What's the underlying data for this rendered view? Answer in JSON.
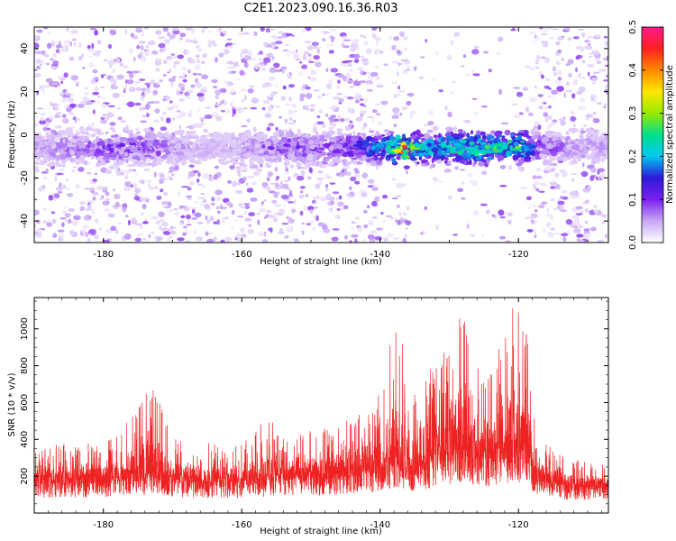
{
  "title": "C2E1.2023.090.16.36.R03",
  "colors": {
    "snr_line": "#ee2222",
    "colormap": [
      "#ffffff",
      "#c9a8f5",
      "#7a1ff0",
      "#2d1ad8",
      "#00c8f0",
      "#00e08a",
      "#98e800",
      "#ffe800",
      "#ff8800",
      "#ff2020",
      "#ff1a8c"
    ]
  },
  "chart_data": [
    {
      "type": "heatmap",
      "xlabel": "Height of straight line (km)",
      "ylabel": "Frequency (Hz)",
      "xlim": [
        -190,
        -107
      ],
      "ylim": [
        -50,
        50
      ],
      "xticks": [
        "-180",
        "-160",
        "-140",
        "-120"
      ],
      "yticks": [
        "-40",
        "-20",
        "0",
        "20",
        "40"
      ],
      "colorbar": {
        "label": "Normalized spectral amplitude",
        "range": [
          0.0,
          0.5
        ],
        "ticks": [
          "0.0",
          "0.1",
          "0.2",
          "0.3",
          "0.4",
          "0.5"
        ]
      },
      "band_center_hz": -6,
      "band_halfwidth_hz": 9,
      "band_peak_amplitude": [
        {
          "x": -190,
          "v": 0.06
        },
        {
          "x": -183,
          "v": 0.09
        },
        {
          "x": -178,
          "v": 0.12
        },
        {
          "x": -173,
          "v": 0.1
        },
        {
          "x": -167,
          "v": 0.05
        },
        {
          "x": -162,
          "v": 0.05
        },
        {
          "x": -158,
          "v": 0.08
        },
        {
          "x": -153,
          "v": 0.11
        },
        {
          "x": -147,
          "v": 0.09
        },
        {
          "x": -142,
          "v": 0.17
        },
        {
          "x": -139,
          "v": 0.22
        },
        {
          "x": -137,
          "v": 0.45
        },
        {
          "x": -134,
          "v": 0.22
        },
        {
          "x": -130,
          "v": 0.24
        },
        {
          "x": -127,
          "v": 0.28
        },
        {
          "x": -124,
          "v": 0.26
        },
        {
          "x": -121,
          "v": 0.3
        },
        {
          "x": -119,
          "v": 0.24
        },
        {
          "x": -117,
          "v": 0.1
        },
        {
          "x": -112,
          "v": 0.07
        },
        {
          "x": -107,
          "v": 0.06
        }
      ],
      "noise_gaps_km": [
        [
          -140,
          -138
        ],
        [
          -136,
          -118
        ]
      ]
    },
    {
      "type": "line",
      "xlabel": "Height of straight line (km)",
      "ylabel": "SNR (10 * v/v)",
      "xlim": [
        -190,
        -107
      ],
      "ylim": [
        0,
        1170
      ],
      "xticks": [
        "-180",
        "-160",
        "-140",
        "-120"
      ],
      "yticks": [
        "200",
        "400",
        "600",
        "800",
        "1000"
      ],
      "series": [
        {
          "envelope": [
            {
              "x": -190,
              "base": 150,
              "peak": 330
            },
            {
              "x": -186,
              "base": 155,
              "peak": 380
            },
            {
              "x": -182,
              "base": 150,
              "peak": 400
            },
            {
              "x": -178,
              "base": 160,
              "peak": 440
            },
            {
              "x": -175,
              "base": 180,
              "peak": 580
            },
            {
              "x": -173,
              "base": 175,
              "peak": 710
            },
            {
              "x": -170,
              "base": 160,
              "peak": 420
            },
            {
              "x": -165,
              "base": 145,
              "peak": 380
            },
            {
              "x": -160,
              "base": 145,
              "peak": 370
            },
            {
              "x": -156,
              "base": 160,
              "peak": 540
            },
            {
              "x": -153,
              "base": 175,
              "peak": 420
            },
            {
              "x": -148,
              "base": 170,
              "peak": 470
            },
            {
              "x": -143,
              "base": 185,
              "peak": 560
            },
            {
              "x": -140,
              "base": 215,
              "peak": 650
            },
            {
              "x": -137.2,
              "base": 260,
              "peak": 1160
            },
            {
              "x": -136,
              "base": 210,
              "peak": 640
            },
            {
              "x": -133,
              "base": 240,
              "peak": 800
            },
            {
              "x": -130,
              "base": 270,
              "peak": 1080
            },
            {
              "x": -128,
              "base": 300,
              "peak": 1150
            },
            {
              "x": -126,
              "base": 260,
              "peak": 800
            },
            {
              "x": -124,
              "base": 260,
              "peak": 760
            },
            {
              "x": -121,
              "base": 300,
              "peak": 1150
            },
            {
              "x": -119,
              "base": 300,
              "peak": 1130
            },
            {
              "x": -117.5,
              "base": 170,
              "peak": 420
            },
            {
              "x": -113,
              "base": 130,
              "peak": 300
            },
            {
              "x": -107,
              "base": 130,
              "peak": 270
            }
          ]
        }
      ]
    }
  ]
}
